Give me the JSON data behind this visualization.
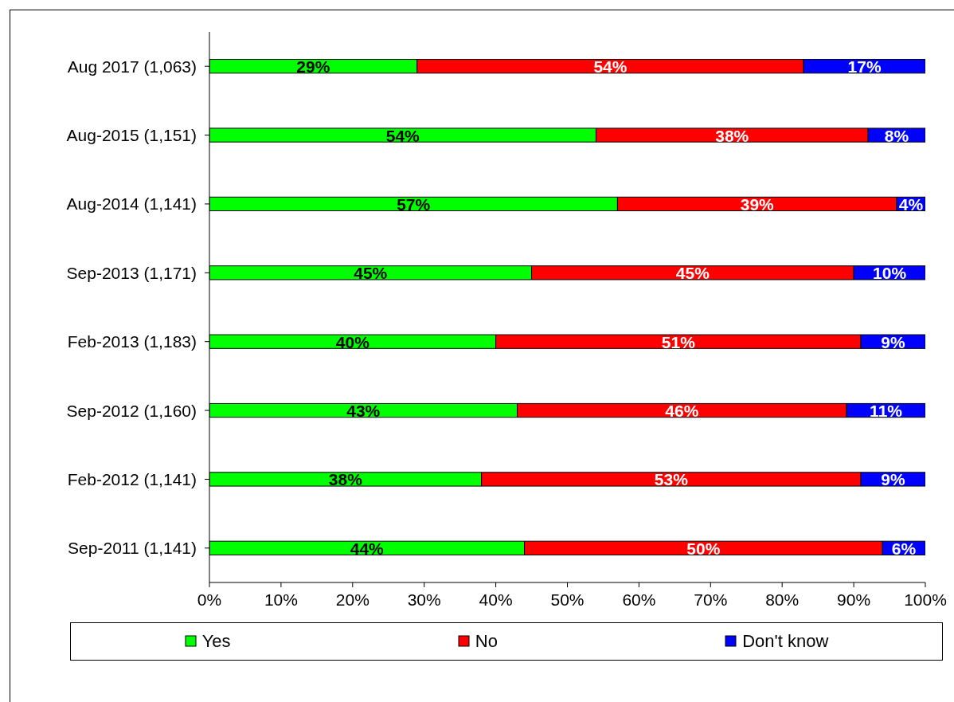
{
  "chart_data": {
    "type": "bar",
    "orientation": "horizontal",
    "stacked": true,
    "categories": [
      "Aug 2017 (1,063)",
      "Aug-2015 (1,151)",
      "Aug-2014 (1,141)",
      "Sep-2013 (1,171)",
      "Feb-2013 (1,183)",
      "Sep-2012 (1,160)",
      "Feb-2012 (1,141)",
      "Sep-2011 (1,141)"
    ],
    "series": [
      {
        "name": "Yes",
        "color": "#00ff00",
        "values": [
          29,
          54,
          57,
          45,
          40,
          43,
          38,
          44
        ],
        "value_labels": [
          "29%",
          "54%",
          "57%",
          "45%",
          "40%",
          "43%",
          "38%",
          "44%"
        ]
      },
      {
        "name": "No",
        "color": "#ff0000",
        "values": [
          54,
          38,
          39,
          45,
          51,
          46,
          53,
          50
        ],
        "value_labels": [
          "54%",
          "38%",
          "39%",
          "45%",
          "51%",
          "46%",
          "53%",
          "50%"
        ]
      },
      {
        "name": "Don't know",
        "color": "#0000ff",
        "values": [
          17,
          8,
          4,
          10,
          9,
          11,
          9,
          6
        ],
        "value_labels": [
          "17%",
          "8%",
          "4%",
          "10%",
          "9%",
          "11%",
          "9%",
          "6%"
        ]
      }
    ],
    "xlim": [
      0,
      100
    ],
    "xticks": [
      {
        "value": 0,
        "label": "0%"
      },
      {
        "value": 10,
        "label": "10%"
      },
      {
        "value": 20,
        "label": "20%"
      },
      {
        "value": 30,
        "label": "30%"
      },
      {
        "value": 40,
        "label": "40%"
      },
      {
        "value": 50,
        "label": "50%"
      },
      {
        "value": 60,
        "label": "60%"
      },
      {
        "value": 70,
        "label": "70%"
      },
      {
        "value": 80,
        "label": "80%"
      },
      {
        "value": 90,
        "label": "90%"
      },
      {
        "value": 100,
        "label": "100%"
      }
    ],
    "grid": false,
    "legend": "bottom"
  }
}
